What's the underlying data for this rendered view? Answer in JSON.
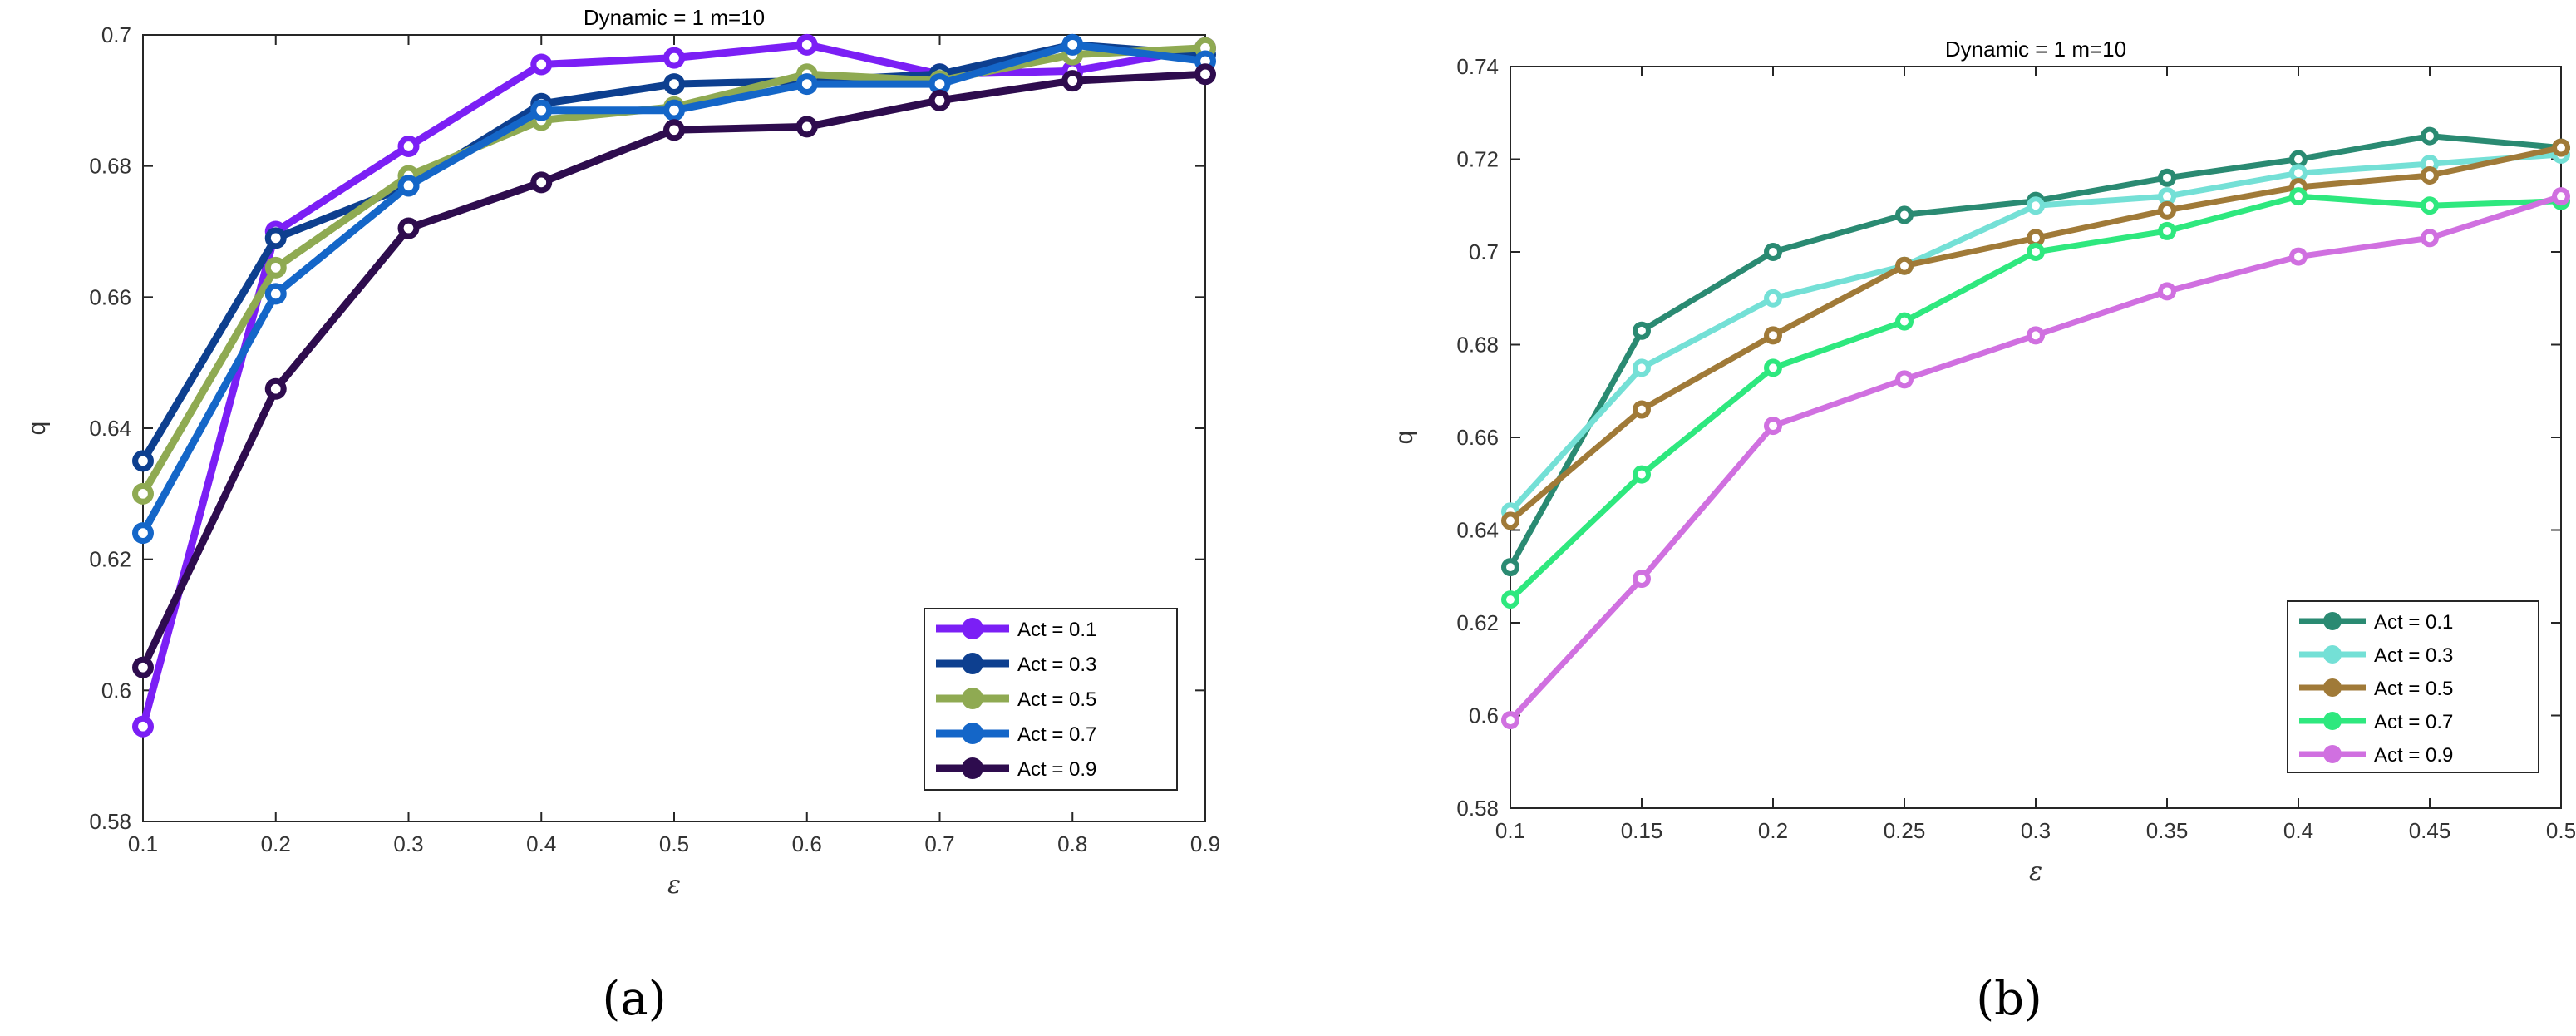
{
  "chart_data": [
    {
      "type": "line",
      "panel_label": "(a)",
      "title": "Dynamic = 1 m=10",
      "xlabel": "ε",
      "ylabel": "q",
      "xlim": [
        0.1,
        0.9
      ],
      "ylim": [
        0.58,
        0.7
      ],
      "xticks": [
        "0.1",
        "0.2",
        "0.3",
        "0.4",
        "0.5",
        "0.6",
        "0.7",
        "0.8",
        "0.9"
      ],
      "yticks": [
        "0.58",
        "0.6",
        "0.62",
        "0.64",
        "0.66",
        "0.68",
        "0.7"
      ],
      "x": [
        0.1,
        0.2,
        0.3,
        0.4,
        0.5,
        0.6,
        0.7,
        0.8,
        0.9
      ],
      "legend_position": "bottom-right",
      "series": [
        {
          "name": "Act = 0.1",
          "color": "#7b1ff5",
          "values": [
            0.5945,
            0.67,
            0.683,
            0.6955,
            0.6965,
            0.6985,
            0.694,
            0.6945,
            0.698
          ]
        },
        {
          "name": "Act = 0.3",
          "color": "#0d3f8f",
          "values": [
            0.635,
            0.669,
            0.677,
            0.6895,
            0.6925,
            0.693,
            0.694,
            0.6985,
            0.697
          ]
        },
        {
          "name": "Act = 0.5",
          "color": "#8faa52",
          "values": [
            0.63,
            0.6645,
            0.6785,
            0.687,
            0.689,
            0.694,
            0.693,
            0.697,
            0.698
          ]
        },
        {
          "name": "Act = 0.7",
          "color": "#1466c8",
          "values": [
            0.624,
            0.6605,
            0.677,
            0.6885,
            0.6885,
            0.6925,
            0.6925,
            0.6985,
            0.696
          ]
        },
        {
          "name": "Act = 0.9",
          "color": "#2e0c4e",
          "values": [
            0.6035,
            0.646,
            0.6705,
            0.6775,
            0.6855,
            0.686,
            0.69,
            0.693,
            0.694
          ]
        }
      ]
    },
    {
      "type": "line",
      "panel_label": "(b)",
      "title": "Dynamic = 1 m=10",
      "xlabel": "ε",
      "ylabel": "q",
      "xlim": [
        0.1,
        0.5
      ],
      "ylim": [
        0.58,
        0.74
      ],
      "xticks": [
        "0.1",
        "0.15",
        "0.2",
        "0.25",
        "0.3",
        "0.35",
        "0.4",
        "0.45",
        "0.5"
      ],
      "yticks": [
        "0.58",
        "0.6",
        "0.62",
        "0.64",
        "0.66",
        "0.68",
        "0.7",
        "0.72",
        "0.74"
      ],
      "x": [
        0.1,
        0.15,
        0.2,
        0.25,
        0.3,
        0.35,
        0.4,
        0.45,
        0.5
      ],
      "legend_position": "bottom-right",
      "series": [
        {
          "name": "Act = 0.1",
          "color": "#2a8a72",
          "values": [
            0.632,
            0.683,
            0.7,
            0.708,
            0.711,
            0.716,
            0.72,
            0.725,
            0.7225
          ]
        },
        {
          "name": "Act = 0.3",
          "color": "#74e0d6",
          "values": [
            0.644,
            0.675,
            0.69,
            0.697,
            0.71,
            0.712,
            0.717,
            0.719,
            0.721
          ]
        },
        {
          "name": "Act = 0.5",
          "color": "#a07a38",
          "values": [
            0.642,
            0.666,
            0.682,
            0.697,
            0.703,
            0.709,
            0.714,
            0.7165,
            0.7225
          ]
        },
        {
          "name": "Act = 0.7",
          "color": "#2ee87e",
          "values": [
            0.625,
            0.652,
            0.675,
            0.685,
            0.7,
            0.7045,
            0.712,
            0.71,
            0.711
          ]
        },
        {
          "name": "Act = 0.9",
          "color": "#d070e0",
          "values": [
            0.599,
            0.6295,
            0.6625,
            0.6725,
            0.682,
            0.6915,
            0.699,
            0.703,
            0.712
          ]
        }
      ]
    }
  ]
}
